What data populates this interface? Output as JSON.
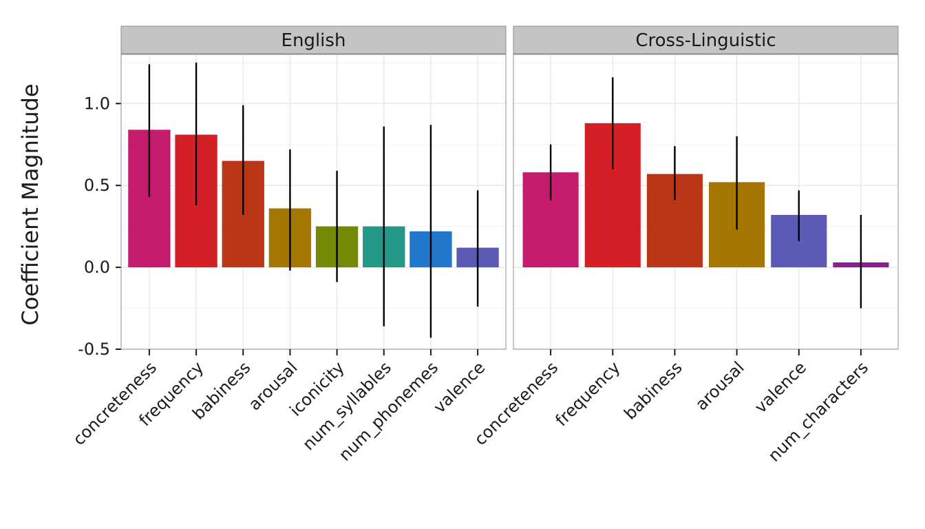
{
  "chart_data": {
    "type": "bar",
    "ylabel": "Coefficient Magnitude",
    "xlabel": "",
    "ylim": [
      -0.5,
      1.3
    ],
    "yticks": [
      -0.5,
      0.0,
      0.5,
      1.0
    ],
    "ytick_labels": [
      "-0.5",
      "0.0",
      "0.5",
      "1.0"
    ],
    "grid": true,
    "legend": "none",
    "error_bars": true,
    "panels": [
      {
        "title": "English",
        "categories": [
          "concreteness",
          "frequency",
          "babiness",
          "arousal",
          "iconicity",
          "num_syllables",
          "num_phonemes",
          "valence"
        ],
        "values": [
          0.84,
          0.81,
          0.65,
          0.36,
          0.25,
          0.25,
          0.22,
          0.12
        ],
        "error_low": [
          0.43,
          0.38,
          0.32,
          -0.02,
          -0.09,
          -0.36,
          -0.43,
          -0.24
        ],
        "error_high": [
          1.24,
          1.25,
          0.99,
          0.72,
          0.59,
          0.86,
          0.87,
          0.47
        ],
        "colors": [
          "#c51b6f",
          "#d31f26",
          "#b93716",
          "#a57600",
          "#728a06",
          "#239887",
          "#2276cc",
          "#5c5ab7"
        ]
      },
      {
        "title": "Cross-Linguistic",
        "categories": [
          "concreteness",
          "frequency",
          "babiness",
          "arousal",
          "valence",
          "num_characters"
        ],
        "values": [
          0.58,
          0.88,
          0.57,
          0.52,
          0.32,
          0.03
        ],
        "error_low": [
          0.41,
          0.6,
          0.41,
          0.23,
          0.16,
          -0.25
        ],
        "error_high": [
          0.75,
          1.16,
          0.74,
          0.8,
          0.47,
          0.32
        ],
        "colors": [
          "#c51b6f",
          "#d31f26",
          "#b93716",
          "#a57600",
          "#5c5ab7",
          "#8a1d91"
        ]
      }
    ]
  }
}
